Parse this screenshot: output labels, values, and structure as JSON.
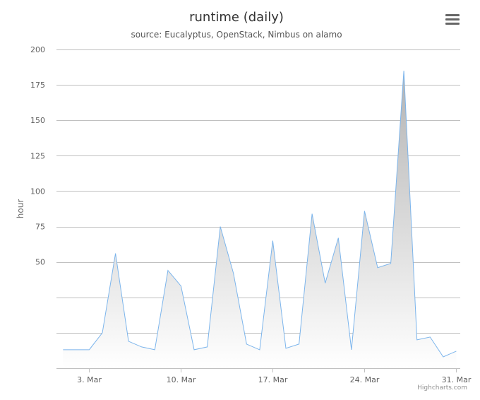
{
  "header": {
    "title": "runtime (daily)",
    "subtitle": "source: Eucalyptus, OpenStack, Nimbus on alamo"
  },
  "menu": {
    "icon": "hamburger-menu-icon"
  },
  "credits": "Highcharts.com",
  "colors": {
    "line": "#7cb5ec",
    "fill_top": "#b3b3b3",
    "fill_bottom": "#ffffff",
    "grid": "#c0c0c0"
  },
  "chart_data": {
    "type": "area",
    "title": "runtime (daily)",
    "subtitle": "source: Eucalyptus, OpenStack, Nimbus on alamo",
    "xlabel": "",
    "ylabel": "hour",
    "ylim": [
      -25,
      200
    ],
    "yticks": [
      200,
      175,
      150,
      125,
      100,
      75,
      50
    ],
    "xticks": [
      {
        "day": 3,
        "label": "3. Mar"
      },
      {
        "day": 10,
        "label": "10. Mar"
      },
      {
        "day": 17,
        "label": "17. Mar"
      },
      {
        "day": 24,
        "label": "24. Mar"
      },
      {
        "day": 31,
        "label": "31. Mar"
      }
    ],
    "grid": true,
    "legend": "none",
    "x": [
      1,
      2,
      3,
      4,
      5,
      6,
      7,
      8,
      9,
      10,
      11,
      12,
      13,
      14,
      15,
      16,
      17,
      18,
      19,
      20,
      21,
      22,
      23,
      24,
      25,
      26,
      27,
      28,
      29,
      30,
      31
    ],
    "series": [
      {
        "values": [
          -12,
          -12,
          -12,
          0,
          56,
          -6,
          -10,
          -12,
          44,
          33,
          -12,
          -10,
          75,
          42,
          -8,
          -12,
          65,
          -11,
          -8,
          84,
          35,
          67,
          -12,
          86,
          46,
          49,
          185,
          -5,
          -3,
          -17,
          -13
        ]
      }
    ]
  }
}
